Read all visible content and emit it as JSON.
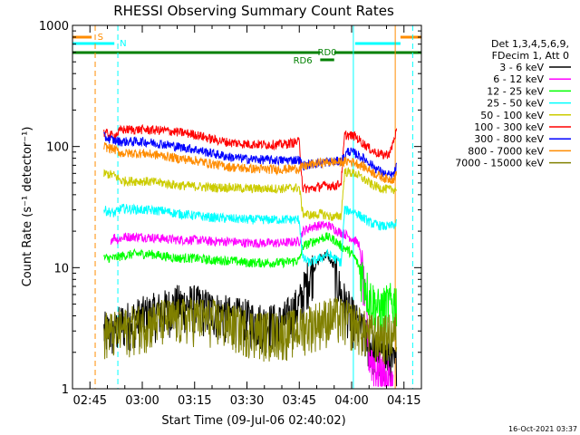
{
  "chart_data": {
    "type": "line",
    "title": "RHESSI Observing Summary Count Rates",
    "xlabel": "Start Time (09-Jul-06 02:40:02)",
    "ylabel": "Count Rate (s⁻¹ detector⁻¹)",
    "yscale": "log",
    "ylim": [
      1,
      1000
    ],
    "xlim_minutes": [
      160,
      260
    ],
    "x_ticks": [
      {
        "label": "02:45",
        "minute": 165
      },
      {
        "label": "03:00",
        "minute": 180
      },
      {
        "label": "03:15",
        "minute": 195
      },
      {
        "label": "03:30",
        "minute": 210
      },
      {
        "label": "03:45",
        "minute": 225
      },
      {
        "label": "04:00",
        "minute": 240
      },
      {
        "label": "04:15",
        "minute": 255
      }
    ],
    "y_ticks": [
      "1",
      "10",
      "100",
      "1000"
    ],
    "legend_header": [
      "Det 1,3,4,5,6,9,",
      "FDecim 1, Att 0"
    ],
    "legend_position": "right",
    "timestamp": "16-Oct-2021 03:37",
    "flags": {
      "saa_label": "S",
      "night_label": "N",
      "rd0_label": "RD0",
      "rd6_label": "RD6",
      "saa_color": "#ff8c00",
      "night_color": "#00ffff",
      "decim_color": "#008000",
      "saa_intervals": [
        [
          160,
          165.5
        ],
        [
          254,
          260
        ]
      ],
      "night_intervals": [
        [
          160,
          172
        ],
        [
          241,
          254
        ]
      ],
      "decim_intervals": [
        [
          160,
          231
        ],
        [
          235,
          260
        ]
      ],
      "rd0_interval": [
        231,
        235
      ]
    },
    "vertical_lines": [
      {
        "minute": 166.5,
        "color": "#ff8c00",
        "style": "dash"
      },
      {
        "minute": 173,
        "color": "#00ffff",
        "style": "dash"
      },
      {
        "minute": 240.5,
        "color": "#00ffff",
        "style": "solid"
      },
      {
        "minute": 252.5,
        "color": "#ff8c00",
        "style": "solid"
      },
      {
        "minute": 257.5,
        "color": "#00ffff",
        "style": "dash"
      }
    ],
    "data_start_minute": 169,
    "data_end_minute": 253,
    "series": [
      {
        "name": "3 - 6 keV",
        "color": "#000000",
        "points": [
          [
            169,
            3
          ],
          [
            172,
            3
          ],
          [
            174,
            3.5
          ],
          [
            180,
            4
          ],
          [
            186,
            4.5
          ],
          [
            190,
            5
          ],
          [
            195,
            5
          ],
          [
            200,
            4.5
          ],
          [
            205,
            4
          ],
          [
            210,
            3.8
          ],
          [
            215,
            3.5
          ],
          [
            220,
            3.5
          ],
          [
            225,
            5
          ],
          [
            228,
            9
          ],
          [
            231,
            12
          ],
          [
            233,
            13
          ],
          [
            235,
            10
          ],
          [
            237,
            6
          ],
          [
            240,
            4
          ],
          [
            243,
            3
          ],
          [
            247,
            2
          ],
          [
            250,
            1.8
          ],
          [
            253,
            1.5
          ]
        ]
      },
      {
        "name": "6 - 12 keV",
        "color": "#ff00ff",
        "points": [
          [
            171,
            17
          ],
          [
            172,
            18
          ],
          [
            173,
            17
          ],
          [
            175,
            18
          ],
          [
            180,
            18
          ],
          [
            185,
            17.5
          ],
          [
            190,
            17
          ],
          [
            195,
            17
          ],
          [
            200,
            16.5
          ],
          [
            205,
            16.5
          ],
          [
            210,
            16
          ],
          [
            215,
            16
          ],
          [
            220,
            16
          ],
          [
            225,
            16.5
          ],
          [
            226,
            20
          ],
          [
            229,
            22
          ],
          [
            232,
            22.5
          ],
          [
            234,
            22
          ],
          [
            236,
            20
          ],
          [
            238,
            19
          ],
          [
            240,
            17.5
          ],
          [
            242,
            16
          ],
          [
            243,
            10
          ],
          [
            244,
            5
          ],
          [
            245,
            2
          ],
          [
            247,
            1.5
          ],
          [
            250,
            1.2
          ],
          [
            252,
            1.1
          ]
        ]
      },
      {
        "name": "12 - 25 keV",
        "color": "#00ff00",
        "points": [
          [
            169,
            12
          ],
          [
            172,
            12
          ],
          [
            174,
            12.5
          ],
          [
            178,
            13
          ],
          [
            182,
            13
          ],
          [
            186,
            12.5
          ],
          [
            190,
            12
          ],
          [
            195,
            12
          ],
          [
            200,
            11.5
          ],
          [
            205,
            11.5
          ],
          [
            210,
            11
          ],
          [
            215,
            11
          ],
          [
            220,
            11
          ],
          [
            225,
            11.5
          ],
          [
            226,
            15
          ],
          [
            230,
            17
          ],
          [
            233,
            18
          ],
          [
            235,
            17
          ],
          [
            237,
            15
          ],
          [
            239,
            14
          ],
          [
            241,
            12
          ],
          [
            243,
            9
          ],
          [
            245,
            6
          ],
          [
            248,
            4.5
          ],
          [
            250,
            5
          ],
          [
            253,
            5.5
          ]
        ]
      },
      {
        "name": "25 - 50 keV",
        "color": "#00ffff",
        "points": [
          [
            169,
            30
          ],
          [
            172,
            28
          ],
          [
            174,
            31
          ],
          [
            180,
            30
          ],
          [
            186,
            29.5
          ],
          [
            190,
            28
          ],
          [
            195,
            27
          ],
          [
            200,
            26
          ],
          [
            205,
            25.5
          ],
          [
            210,
            25
          ],
          [
            215,
            25
          ],
          [
            220,
            25
          ],
          [
            225,
            25
          ],
          [
            226,
            12
          ],
          [
            228,
            11
          ],
          [
            231,
            12
          ],
          [
            233,
            13
          ],
          [
            235,
            12
          ],
          [
            237,
            11
          ],
          [
            238,
            30
          ],
          [
            241,
            29
          ],
          [
            243,
            26
          ],
          [
            246,
            23
          ],
          [
            249,
            22
          ],
          [
            251,
            22
          ],
          [
            253,
            23
          ]
        ]
      },
      {
        "name": "50 - 100 keV",
        "color": "#cccc00",
        "points": [
          [
            169,
            60
          ],
          [
            172,
            58
          ],
          [
            174,
            52
          ],
          [
            180,
            52
          ],
          [
            186,
            50
          ],
          [
            190,
            48
          ],
          [
            195,
            47
          ],
          [
            200,
            46
          ],
          [
            205,
            46
          ],
          [
            210,
            45
          ],
          [
            215,
            45
          ],
          [
            220,
            45
          ],
          [
            225,
            46
          ],
          [
            226,
            28
          ],
          [
            229,
            27
          ],
          [
            231,
            28
          ],
          [
            233,
            27
          ],
          [
            235,
            26
          ],
          [
            237,
            27
          ],
          [
            238,
            62
          ],
          [
            241,
            60
          ],
          [
            243,
            55
          ],
          [
            246,
            48
          ],
          [
            249,
            45
          ],
          [
            251,
            44
          ],
          [
            253,
            45
          ]
        ]
      },
      {
        "name": "100 - 300 keV",
        "color": "#ff0000",
        "points": [
          [
            169,
            130
          ],
          [
            172,
            122
          ],
          [
            174,
            138
          ],
          [
            180,
            138
          ],
          [
            186,
            136
          ],
          [
            190,
            132
          ],
          [
            195,
            126
          ],
          [
            200,
            115
          ],
          [
            205,
            108
          ],
          [
            210,
            105
          ],
          [
            215,
            104
          ],
          [
            220,
            104
          ],
          [
            225,
            110
          ],
          [
            226,
            45
          ],
          [
            229,
            45
          ],
          [
            231,
            47
          ],
          [
            233,
            48
          ],
          [
            235,
            47
          ],
          [
            237,
            50
          ],
          [
            238,
            125
          ],
          [
            241,
            122
          ],
          [
            243,
            108
          ],
          [
            246,
            92
          ],
          [
            249,
            85
          ],
          [
            251,
            88
          ],
          [
            253,
            140
          ]
        ]
      },
      {
        "name": "300 - 800 keV",
        "color": "#0000ff",
        "points": [
          [
            169,
            120
          ],
          [
            172,
            112
          ],
          [
            174,
            110
          ],
          [
            180,
            110
          ],
          [
            186,
            105
          ],
          [
            190,
            100
          ],
          [
            195,
            95
          ],
          [
            200,
            88
          ],
          [
            205,
            82
          ],
          [
            210,
            79
          ],
          [
            215,
            78
          ],
          [
            220,
            77
          ],
          [
            225,
            78
          ],
          [
            226,
            70
          ],
          [
            229,
            72
          ],
          [
            232,
            74
          ],
          [
            234,
            75
          ],
          [
            237,
            76
          ],
          [
            239,
            92
          ],
          [
            241,
            88
          ],
          [
            244,
            78
          ],
          [
            247,
            66
          ],
          [
            250,
            58
          ],
          [
            252,
            58
          ],
          [
            253,
            70
          ]
        ]
      },
      {
        "name": "800 - 7000 keV",
        "color": "#ff8c00",
        "points": [
          [
            169,
            100
          ],
          [
            172,
            95
          ],
          [
            174,
            88
          ],
          [
            180,
            88
          ],
          [
            186,
            84
          ],
          [
            190,
            80
          ],
          [
            195,
            77
          ],
          [
            200,
            72
          ],
          [
            205,
            68
          ],
          [
            210,
            66
          ],
          [
            215,
            65
          ],
          [
            220,
            65
          ],
          [
            225,
            66
          ],
          [
            226,
            68
          ],
          [
            229,
            72
          ],
          [
            232,
            74
          ],
          [
            234,
            75
          ],
          [
            237,
            74
          ],
          [
            239,
            76
          ],
          [
            241,
            74
          ],
          [
            244,
            67
          ],
          [
            247,
            59
          ],
          [
            250,
            54
          ],
          [
            252,
            54
          ],
          [
            253,
            60
          ]
        ]
      },
      {
        "name": "7000 - 15000 keV",
        "color": "#808000",
        "points": [
          [
            169,
            3
          ],
          [
            172,
            3
          ],
          [
            175,
            3.2
          ],
          [
            180,
            3.5
          ],
          [
            186,
            3.8
          ],
          [
            190,
            3.8
          ],
          [
            195,
            4
          ],
          [
            200,
            3.8
          ],
          [
            205,
            3.5
          ],
          [
            210,
            3.2
          ],
          [
            215,
            3
          ],
          [
            220,
            3
          ],
          [
            225,
            3.2
          ],
          [
            228,
            3.5
          ],
          [
            232,
            3.8
          ],
          [
            235,
            4
          ],
          [
            238,
            3.8
          ],
          [
            241,
            3.5
          ],
          [
            244,
            3
          ],
          [
            247,
            2.8
          ],
          [
            250,
            2.8
          ],
          [
            253,
            3
          ]
        ]
      }
    ]
  }
}
